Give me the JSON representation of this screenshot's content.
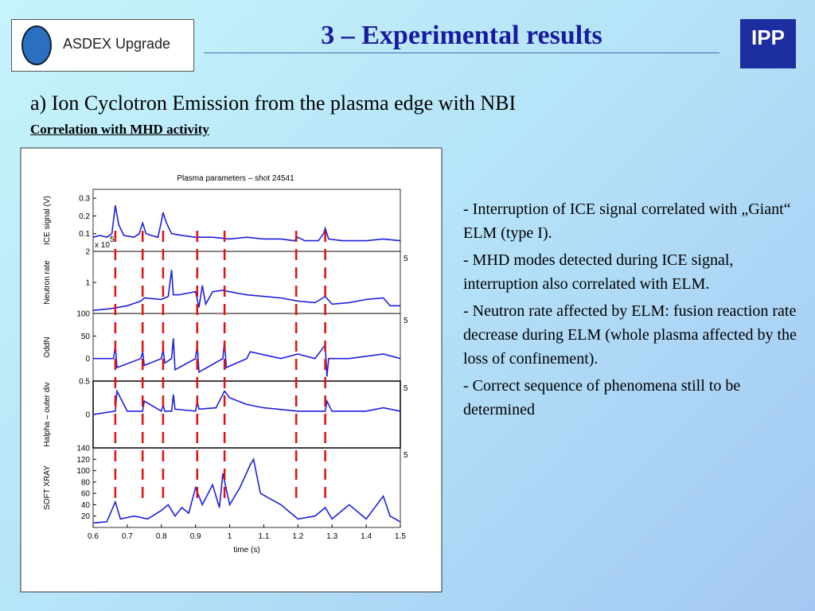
{
  "header": {
    "logo_text": "ASDEX Upgrade",
    "title": "3 – Experimental results",
    "brand": "IPP"
  },
  "heading": "a) Ion Cyclotron Emission from the plasma edge with NBI",
  "subheading": "Correlation with MHD activity",
  "notes": [
    "- Interruption of ICE signal correlated with „Giant“ ELM (type I).",
    "- MHD modes detected during ICE signal, interruption also correlated with ELM.",
    "- Neutron rate affected by ELM: fusion reaction rate decrease during ELM (whole plasma affected by the loss of confinement).",
    "- Correct sequence of phenomena still to be determined"
  ],
  "figure": {
    "title": "Plasma parameters – shot 24541",
    "xlabel": "time (s)",
    "xlim": [
      0.6,
      1.5
    ],
    "xticks": [
      0.6,
      0.7,
      0.8,
      0.9,
      1,
      1.1,
      1.2,
      1.3,
      1.4,
      1.5
    ],
    "line_color": "#1f1fe0",
    "marker_color": "#e01010",
    "markers": [
      0.665,
      0.745,
      0.805,
      0.905,
      0.985,
      1.195,
      1.28
    ],
    "panels": [
      {
        "ylabel": "ICE signal (V)",
        "ylim": [
          0,
          0.35
        ],
        "yticks": [
          0.1,
          0.2,
          0.3
        ],
        "x": [
          0.6,
          0.62,
          0.64,
          0.655,
          0.665,
          0.675,
          0.69,
          0.72,
          0.735,
          0.745,
          0.755,
          0.77,
          0.79,
          0.8,
          0.805,
          0.815,
          0.83,
          0.86,
          0.9,
          0.95,
          1.0,
          1.05,
          1.1,
          1.15,
          1.19,
          1.2,
          1.22,
          1.26,
          1.275,
          1.28,
          1.29,
          1.33,
          1.4,
          1.45,
          1.5
        ],
        "values": [
          0.08,
          0.09,
          0.08,
          0.1,
          0.26,
          0.15,
          0.09,
          0.08,
          0.1,
          0.16,
          0.1,
          0.09,
          0.08,
          0.17,
          0.22,
          0.16,
          0.1,
          0.09,
          0.08,
          0.08,
          0.07,
          0.08,
          0.07,
          0.07,
          0.06,
          0.08,
          0.06,
          0.06,
          0.1,
          0.13,
          0.07,
          0.06,
          0.06,
          0.07,
          0.06
        ]
      },
      {
        "ylabel": "Neutron rate",
        "ylim": [
          0,
          2
        ],
        "yticks": [
          1,
          2
        ],
        "multiplier": "x 10",
        "multiplier_exp": "5",
        "right_label": "5",
        "x": [
          0.6,
          0.65,
          0.7,
          0.74,
          0.75,
          0.8,
          0.82,
          0.83,
          0.835,
          0.85,
          0.9,
          0.91,
          0.92,
          0.93,
          0.95,
          0.98,
          1.0,
          1.05,
          1.1,
          1.15,
          1.2,
          1.25,
          1.28,
          1.3,
          1.35,
          1.4,
          1.45,
          1.47,
          1.5
        ],
        "values": [
          0.1,
          0.15,
          0.25,
          0.4,
          0.5,
          0.45,
          0.55,
          1.4,
          0.6,
          0.6,
          0.7,
          0.2,
          0.9,
          0.3,
          0.7,
          0.75,
          0.7,
          0.6,
          0.55,
          0.5,
          0.4,
          0.35,
          0.55,
          0.3,
          0.35,
          0.45,
          0.5,
          0.25,
          0.25
        ]
      },
      {
        "ylabel": "OddN",
        "ylim": [
          -50,
          100
        ],
        "yticks": [
          0,
          50,
          100
        ],
        "right_label": "5",
        "x": [
          0.6,
          0.66,
          0.665,
          0.67,
          0.74,
          0.745,
          0.75,
          0.8,
          0.805,
          0.81,
          0.83,
          0.835,
          0.84,
          0.9,
          0.905,
          0.91,
          0.98,
          0.985,
          0.99,
          1.05,
          1.06,
          1.15,
          1.2,
          1.25,
          1.28,
          1.285,
          1.29,
          1.35,
          1.45,
          1.5
        ],
        "values": [
          0,
          0,
          30,
          -20,
          0,
          15,
          -15,
          0,
          20,
          -10,
          0,
          45,
          -25,
          0,
          30,
          -30,
          0,
          40,
          -20,
          0,
          15,
          0,
          10,
          0,
          30,
          -40,
          0,
          0,
          10,
          0
        ]
      },
      {
        "ylabel": "Halpha – outer div",
        "ylim": [
          -0.5,
          0.5
        ],
        "yticks": [
          0,
          0.5
        ],
        "right_label": "5",
        "x": [
          0.6,
          0.665,
          0.67,
          0.7,
          0.745,
          0.75,
          0.8,
          0.805,
          0.81,
          0.83,
          0.835,
          0.84,
          0.9,
          0.905,
          0.91,
          0.96,
          0.985,
          1.0,
          1.05,
          1.1,
          1.2,
          1.28,
          1.285,
          1.3,
          1.4,
          1.45,
          1.5
        ],
        "values": [
          0,
          0.05,
          0.35,
          0.05,
          0.05,
          0.2,
          0.05,
          0.15,
          0.05,
          0.05,
          0.3,
          0.08,
          0.05,
          0.2,
          0.08,
          0.1,
          0.35,
          0.25,
          0.15,
          0.1,
          0.05,
          0.05,
          0.2,
          0.05,
          0.05,
          0.1,
          0.05
        ]
      },
      {
        "ylabel": "SOFT XRAY",
        "ylim": [
          0,
          140
        ],
        "yticks": [
          20,
          40,
          60,
          80,
          100,
          120,
          140
        ],
        "right_label": "5",
        "x": [
          0.6,
          0.64,
          0.665,
          0.68,
          0.72,
          0.76,
          0.8,
          0.82,
          0.84,
          0.86,
          0.88,
          0.9,
          0.92,
          0.95,
          0.97,
          0.98,
          1.0,
          1.03,
          1.06,
          1.07,
          1.09,
          1.12,
          1.15,
          1.2,
          1.25,
          1.28,
          1.3,
          1.35,
          1.4,
          1.45,
          1.47,
          1.5
        ],
        "values": [
          8,
          10,
          45,
          15,
          20,
          15,
          30,
          40,
          20,
          35,
          25,
          70,
          40,
          75,
          35,
          95,
          40,
          70,
          110,
          120,
          60,
          50,
          40,
          15,
          20,
          35,
          15,
          40,
          15,
          55,
          20,
          10
        ]
      }
    ]
  }
}
